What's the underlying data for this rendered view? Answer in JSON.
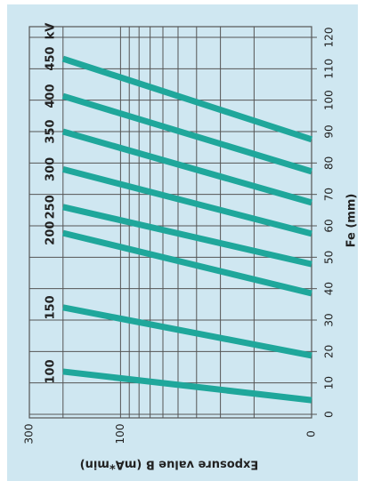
{
  "chart_data": {
    "type": "line",
    "x_label": "Exposure value B (mA*min)",
    "y_label": "Fe (mm)",
    "x": [
      200,
      10
    ],
    "xlim": [
      300,
      10
    ],
    "xscale": "log",
    "xticks": [
      300,
      100,
      {
        "value": 10,
        "label": "0"
      }
    ],
    "minor_xticks": [
      200,
      90,
      80,
      70,
      60,
      50,
      40,
      30,
      20
    ],
    "ylim": [
      0,
      120
    ],
    "yticks": [
      0,
      10,
      20,
      30,
      40,
      50,
      60,
      70,
      80,
      90,
      100,
      110,
      120
    ],
    "grid": true,
    "series_unit": "kV",
    "series": [
      {
        "name": "100",
        "color": "#1fa79b",
        "values": [
          13.6,
          4.5
        ]
      },
      {
        "name": "150",
        "color": "#1fa79b",
        "values": [
          34,
          18.7
        ]
      },
      {
        "name": "200",
        "color": "#1fa79b",
        "values": [
          57.7,
          38.5
        ]
      },
      {
        "name": "250",
        "color": "#1fa79b",
        "values": [
          66,
          47.8
        ]
      },
      {
        "name": "300",
        "color": "#1fa79b",
        "values": [
          78,
          57.5
        ]
      },
      {
        "name": "350",
        "color": "#1fa79b",
        "values": [
          90,
          67.4
        ]
      },
      {
        "name": "400",
        "color": "#1fa79b",
        "values": [
          101.3,
          77.3
        ]
      },
      {
        "name": "450",
        "color": "#1fa79b",
        "values": [
          113.2,
          87.5
        ]
      }
    ]
  }
}
